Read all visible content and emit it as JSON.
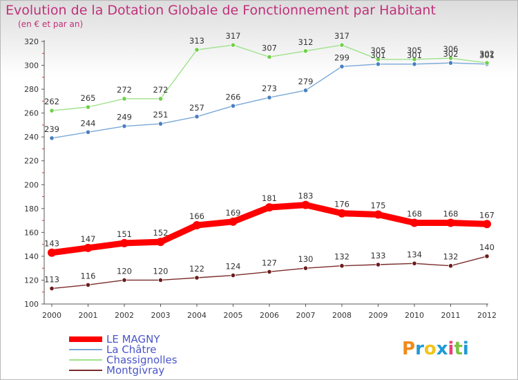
{
  "header": {
    "title": "Evolution de la Dotation Globale de Fonctionnement par Habitant",
    "subtitle": "(en € et par an)"
  },
  "chart_data": {
    "type": "line",
    "title": "Evolution de la Dotation Globale de Fonctionnement par Habitant",
    "subtitle": "(en € et par an)",
    "xlabel": "",
    "ylabel": "",
    "ylim": [
      100,
      320
    ],
    "yticks": [
      100,
      120,
      140,
      160,
      180,
      200,
      220,
      240,
      260,
      280,
      300,
      320
    ],
    "categories": [
      "2000",
      "2001",
      "2002",
      "2003",
      "2004",
      "2005",
      "2006",
      "2007",
      "2008",
      "2009",
      "2010",
      "2011",
      "2012"
    ],
    "grid": false,
    "legend": "bottom-left",
    "series": [
      {
        "name": "LE MAGNY",
        "color": "#ff0000",
        "marker": "#ff0000",
        "values": [
          143,
          147,
          151,
          152,
          166,
          169,
          181,
          183,
          176,
          175,
          168,
          168,
          167
        ]
      },
      {
        "name": "La Châtre",
        "color": "#7aa8d8",
        "marker": "#4a7fc0",
        "values": [
          239,
          244,
          249,
          251,
          257,
          266,
          273,
          279,
          299,
          301,
          301,
          302,
          301
        ]
      },
      {
        "name": "Chassignolles",
        "color": "#9ee28a",
        "marker": "#6fd04a",
        "values": [
          262,
          265,
          272,
          272,
          313,
          317,
          307,
          312,
          317,
          305,
          305,
          306,
          302
        ]
      },
      {
        "name": "Montgivray",
        "color": "#7a2a2a",
        "marker": "#6a1c1c",
        "values": [
          113,
          116,
          120,
          120,
          122,
          124,
          127,
          130,
          132,
          133,
          134,
          132,
          140
        ]
      }
    ]
  },
  "logo": {
    "letters": [
      "P",
      "r",
      "o",
      "x",
      "i",
      "t",
      "i"
    ],
    "colors": [
      "#f08a1c",
      "#1f9ad6",
      "#f0c419",
      "#1f9ad6",
      "#e8407a",
      "#7cc243",
      "#1f9ad6"
    ]
  }
}
